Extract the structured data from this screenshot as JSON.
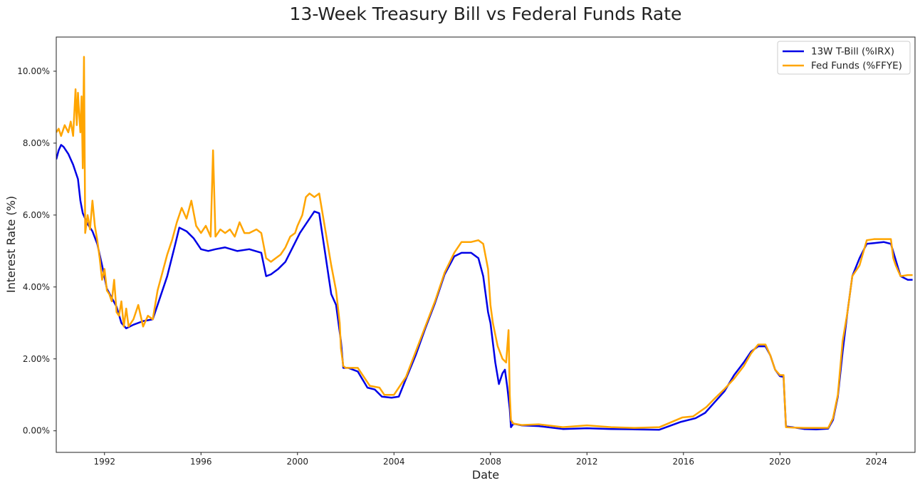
{
  "chart_data": {
    "type": "line",
    "title": "13-Week Treasury Bill vs Federal Funds Rate",
    "xlabel": "Date",
    "ylabel": "Interest Rate (%)",
    "xlim": [
      1990.0,
      2025.6
    ],
    "ylim": [
      -0.6,
      10.95
    ],
    "x_ticks": [
      1992,
      1996,
      2000,
      2004,
      2008,
      2012,
      2016,
      2020,
      2024
    ],
    "x_tick_labels": [
      "1992",
      "1996",
      "2000",
      "2004",
      "2008",
      "2012",
      "2016",
      "2020",
      "2024"
    ],
    "y_ticks": [
      0,
      2,
      4,
      6,
      8,
      10
    ],
    "y_tick_labels": [
      "0.00%",
      "2.00%",
      "4.00%",
      "6.00%",
      "8.00%",
      "10.00%"
    ],
    "grid": false,
    "legend_position": "top-right",
    "series": [
      {
        "name": "13W T-Bill (%IRX)",
        "color": "#0000e6",
        "x": [
          1990.0,
          1990.1,
          1990.2,
          1990.3,
          1990.5,
          1990.7,
          1990.9,
          1991.0,
          1991.1,
          1991.2,
          1991.3,
          1991.5,
          1991.7,
          1991.9,
          1992.1,
          1992.3,
          1992.5,
          1992.7,
          1992.9,
          1993.2,
          1993.6,
          1994.0,
          1994.3,
          1994.6,
          1994.9,
          1995.1,
          1995.4,
          1995.7,
          1996.0,
          1996.3,
          1996.6,
          1997.0,
          1997.5,
          1998.0,
          1998.5,
          1998.7,
          1998.9,
          1999.2,
          1999.5,
          1999.8,
          2000.1,
          2000.4,
          2000.7,
          2000.9,
          2001.0,
          2001.2,
          2001.4,
          2001.6,
          2001.8,
          2001.9,
          2002.1,
          2002.5,
          2002.9,
          2003.2,
          2003.5,
          2003.9,
          2004.2,
          2004.5,
          2004.9,
          2005.3,
          2005.7,
          2006.1,
          2006.5,
          2006.8,
          2007.2,
          2007.5,
          2007.7,
          2007.9,
          2008.0,
          2008.2,
          2008.35,
          2008.5,
          2008.6,
          2008.7,
          2008.8,
          2008.85,
          2008.95,
          2009.3,
          2010.0,
          2011.0,
          2012.0,
          2013.0,
          2014.0,
          2015.0,
          2015.9,
          2016.5,
          2016.9,
          2017.3,
          2017.7,
          2018.1,
          2018.5,
          2018.8,
          2019.1,
          2019.4,
          2019.6,
          2019.8,
          2020.0,
          2020.15,
          2020.25,
          2020.5,
          2021.0,
          2021.5,
          2022.0,
          2022.2,
          2022.4,
          2022.6,
          2022.8,
          2023.0,
          2023.3,
          2023.6,
          2023.9,
          2024.3,
          2024.6,
          2024.8,
          2025.0,
          2025.3,
          2025.5
        ],
        "values": [
          7.55,
          7.8,
          7.95,
          7.9,
          7.7,
          7.4,
          7.0,
          6.4,
          6.05,
          5.9,
          5.75,
          5.55,
          5.2,
          4.6,
          3.95,
          3.7,
          3.45,
          3.0,
          2.85,
          2.95,
          3.05,
          3.1,
          3.7,
          4.3,
          5.1,
          5.65,
          5.55,
          5.35,
          5.05,
          5.0,
          5.05,
          5.1,
          5.0,
          5.05,
          4.95,
          4.3,
          4.35,
          4.5,
          4.7,
          5.1,
          5.5,
          5.8,
          6.1,
          6.05,
          5.6,
          4.7,
          3.8,
          3.5,
          2.5,
          1.75,
          1.75,
          1.65,
          1.2,
          1.15,
          0.95,
          0.92,
          0.95,
          1.45,
          2.1,
          2.85,
          3.55,
          4.35,
          4.85,
          4.95,
          4.95,
          4.8,
          4.3,
          3.3,
          3.0,
          1.9,
          1.3,
          1.6,
          1.7,
          1.2,
          0.6,
          0.1,
          0.2,
          0.15,
          0.13,
          0.05,
          0.07,
          0.05,
          0.04,
          0.03,
          0.25,
          0.35,
          0.5,
          0.8,
          1.1,
          1.55,
          1.9,
          2.2,
          2.35,
          2.35,
          2.1,
          1.7,
          1.52,
          1.5,
          0.12,
          0.1,
          0.05,
          0.04,
          0.06,
          0.3,
          0.95,
          2.2,
          3.3,
          4.3,
          4.8,
          5.2,
          5.22,
          5.25,
          5.2,
          4.75,
          4.3,
          4.2,
          4.2
        ]
      },
      {
        "name": "Fed Funds (%FFYE)",
        "color": "#ffa500",
        "x": [
          1990.0,
          1990.1,
          1990.2,
          1990.35,
          1990.5,
          1990.6,
          1990.7,
          1990.8,
          1990.85,
          1990.9,
          1990.95,
          1991.0,
          1991.05,
          1991.1,
          1991.15,
          1991.2,
          1991.3,
          1991.4,
          1991.5,
          1991.6,
          1991.7,
          1991.8,
          1991.9,
          1992.0,
          1992.1,
          1992.2,
          1992.3,
          1992.4,
          1992.5,
          1992.6,
          1992.7,
          1992.8,
          1992.9,
          1993.0,
          1993.2,
          1993.4,
          1993.6,
          1993.8,
          1994.0,
          1994.2,
          1994.4,
          1994.6,
          1994.8,
          1995.0,
          1995.2,
          1995.4,
          1995.6,
          1995.8,
          1996.0,
          1996.2,
          1996.4,
          1996.5,
          1996.6,
          1996.8,
          1997.0,
          1997.2,
          1997.4,
          1997.6,
          1997.8,
          1998.0,
          1998.3,
          1998.5,
          1998.7,
          1998.9,
          1999.1,
          1999.3,
          1999.5,
          1999.7,
          1999.9,
          2000.0,
          2000.2,
          2000.35,
          2000.5,
          2000.7,
          2000.9,
          2001.0,
          2001.2,
          2001.4,
          2001.6,
          2001.75,
          2001.8,
          2001.9,
          2002.0,
          2002.5,
          2002.9,
          2003.0,
          2003.4,
          2003.6,
          2004.0,
          2004.5,
          2004.9,
          2005.3,
          2005.7,
          2006.1,
          2006.5,
          2006.8,
          2007.2,
          2007.5,
          2007.7,
          2007.9,
          2008.0,
          2008.1,
          2008.3,
          2008.5,
          2008.65,
          2008.75,
          2008.8,
          2008.85,
          2008.95,
          2009.3,
          2010.0,
          2011.0,
          2012.0,
          2013.0,
          2014.0,
          2015.0,
          2015.95,
          2016.4,
          2016.95,
          2017.3,
          2017.7,
          2018.1,
          2018.5,
          2018.8,
          2019.1,
          2019.4,
          2019.6,
          2019.8,
          2020.0,
          2020.15,
          2020.25,
          2020.5,
          2021.0,
          2021.5,
          2022.0,
          2022.2,
          2022.4,
          2022.6,
          2022.8,
          2023.0,
          2023.3,
          2023.6,
          2023.9,
          2024.3,
          2024.6,
          2024.7,
          2024.8,
          2025.0,
          2025.3,
          2025.5
        ],
        "values": [
          8.3,
          8.4,
          8.2,
          8.5,
          8.3,
          8.6,
          8.2,
          9.5,
          8.5,
          9.4,
          8.8,
          8.3,
          9.3,
          7.3,
          10.4,
          5.5,
          6.0,
          5.6,
          6.4,
          5.7,
          5.3,
          4.8,
          4.2,
          4.5,
          3.9,
          3.8,
          3.6,
          4.2,
          3.3,
          3.2,
          3.6,
          2.9,
          3.4,
          2.9,
          3.1,
          3.5,
          2.9,
          3.2,
          3.1,
          3.9,
          4.4,
          4.9,
          5.3,
          5.8,
          6.2,
          5.9,
          6.4,
          5.7,
          5.5,
          5.7,
          5.4,
          7.8,
          5.4,
          5.6,
          5.5,
          5.6,
          5.4,
          5.8,
          5.5,
          5.5,
          5.6,
          5.5,
          4.8,
          4.7,
          4.8,
          4.9,
          5.1,
          5.4,
          5.5,
          5.7,
          6.0,
          6.5,
          6.6,
          6.5,
          6.6,
          6.2,
          5.4,
          4.6,
          3.9,
          3.0,
          2.3,
          1.8,
          1.75,
          1.75,
          1.35,
          1.25,
          1.2,
          1.0,
          1.0,
          1.5,
          2.2,
          2.9,
          3.6,
          4.4,
          4.95,
          5.25,
          5.25,
          5.3,
          5.2,
          4.5,
          3.5,
          3.0,
          2.35,
          2.0,
          1.9,
          2.8,
          1.0,
          0.3,
          0.2,
          0.16,
          0.18,
          0.1,
          0.15,
          0.1,
          0.08,
          0.1,
          0.37,
          0.4,
          0.66,
          0.9,
          1.16,
          1.45,
          1.8,
          2.15,
          2.4,
          2.4,
          2.1,
          1.7,
          1.55,
          1.55,
          0.1,
          0.09,
          0.08,
          0.08,
          0.08,
          0.35,
          1.0,
          2.5,
          3.3,
          4.3,
          4.6,
          5.3,
          5.33,
          5.33,
          5.33,
          4.8,
          4.6,
          4.3,
          4.33,
          4.33
        ]
      }
    ]
  }
}
